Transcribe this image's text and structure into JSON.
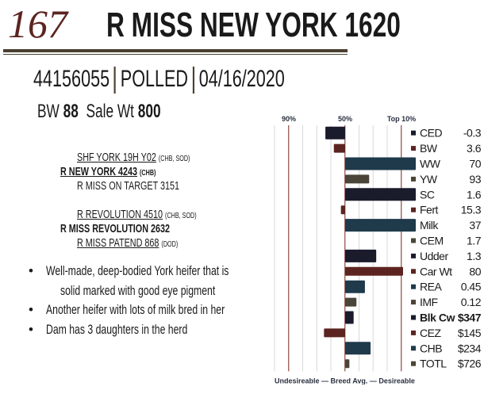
{
  "lot": {
    "number": "167",
    "name": "R  MISS NEW YORK 1620"
  },
  "ids": {
    "registration": "44156055",
    "horn_status": "POLLED",
    "birth_date": "04/16/2020"
  },
  "weights": {
    "bw_label": "BW",
    "bw_value": "88",
    "sale_wt_label": "Sale Wt",
    "sale_wt_value": "800"
  },
  "pedigree": {
    "sire_sire": {
      "name": "SHF YORK 19H Y02",
      "tag": "(CHB, SOD)"
    },
    "sire": {
      "name": "R NEW YORK 4243",
      "tag": "(CHB)"
    },
    "sire_dam": {
      "name": "R MISS ON TARGET 3151"
    },
    "dam_sire": {
      "name": "R REVOLUTION 4510",
      "tag": "(CHB, SOD)"
    },
    "dam": {
      "name": "R MISS REVOLUTION 2632"
    },
    "dam_dam": {
      "name": "R MISS PATEND 868",
      "tag": "(DOD)"
    }
  },
  "notes": [
    "Well-made, deep-bodied York heifer that is",
    "solid marked with good eye pigment",
    "Another heifer with lots of milk bred in her",
    "Dam has 3 daughters in the herd"
  ],
  "chart_data": {
    "type": "bar",
    "orientation": "horizontal",
    "top_labels": [
      "90%",
      "50%",
      "Top 10%"
    ],
    "xlabel": "Undesireable — Breed Avg. —  Desireable",
    "xlim": [
      -50,
      50
    ],
    "grid": true,
    "colors": [
      "#1a1c2c",
      "#5c2420",
      "#1f3a4a",
      "#4a4538"
    ],
    "categories": [
      "CED",
      "BW",
      "WW",
      "YW",
      "SC",
      "Fert",
      "Milk",
      "CEM",
      "Udder",
      "Car Wt",
      "REA",
      "IMF",
      "Blk Cw",
      "CEZ",
      "CHB",
      "TOTL"
    ],
    "epd_values": [
      "-0.3",
      "3.6",
      "70",
      "93",
      "1.6",
      "15.3",
      "37",
      "1.7",
      "1.3",
      "80",
      "0.45",
      "0.12",
      "$347",
      "$145",
      "$234",
      "$726"
    ],
    "values": [
      -14,
      -8,
      50,
      17,
      50,
      -3,
      50,
      0,
      22,
      41,
      14,
      8,
      6,
      -15,
      18,
      3
    ]
  }
}
